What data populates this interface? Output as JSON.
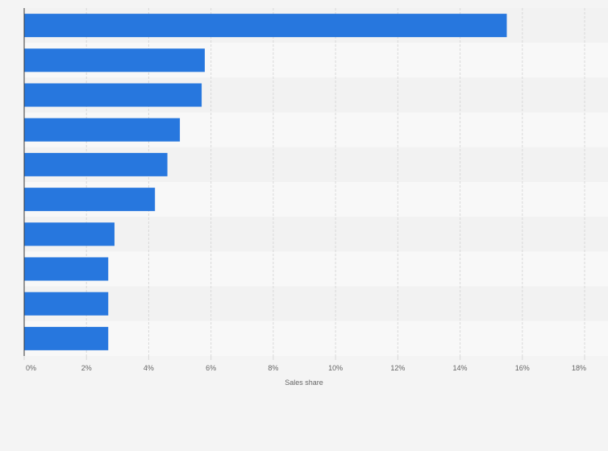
{
  "chart_data": {
    "type": "bar",
    "orientation": "horizontal",
    "categories": [
      "",
      "",
      "",
      "",
      "",
      "",
      "",
      "",
      "",
      ""
    ],
    "values": [
      15.5,
      5.8,
      5.7,
      5.0,
      4.6,
      4.2,
      2.9,
      2.7,
      2.7,
      2.7
    ],
    "title": "",
    "xlabel": "Sales share",
    "ylabel": "",
    "xlim": [
      0,
      18
    ],
    "x_ticks": [
      0,
      2,
      4,
      6,
      8,
      10,
      12,
      14,
      16,
      18
    ],
    "x_tick_labels": [
      "0%",
      "2%",
      "4%",
      "6%",
      "8%",
      "10%",
      "12%",
      "14%",
      "16%",
      "18%"
    ],
    "grid": "vertical dashed",
    "legend": "none",
    "colors": {
      "bar": "#2777de",
      "row_light": "#f8f8f8",
      "row_dark": "#f2f2f2",
      "grid": "#d8d8d8",
      "axis": "#333333",
      "text": "#666666"
    }
  }
}
